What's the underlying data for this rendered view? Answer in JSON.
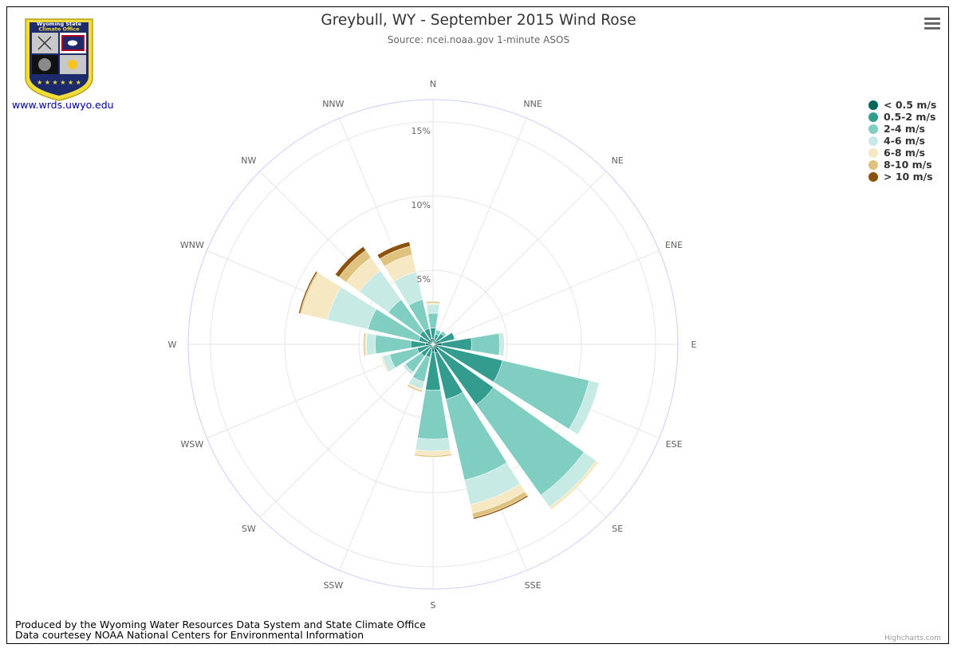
{
  "header": {
    "title": "Greybull, WY - September 2015 Wind Rose",
    "subtitle": "Source: ncei.noaa.gov 1-minute ASOS"
  },
  "logo": {
    "line1": "Wyoming State",
    "line2": "Climate Office",
    "link": "www.wrds.uwyo.edu"
  },
  "footer": {
    "line1": "Produced by the Wyoming Water Resources Data System and State Climate Office",
    "line2": "Data courtesey NOAA National Centers for Environmental Information",
    "credits": "Highcharts.com"
  },
  "colors": {
    "ring": "#ccccff",
    "grid": "#e6e6e6"
  },
  "chart_data": {
    "type": "wind-rose (stacked polar column)",
    "directions": [
      "N",
      "NNE",
      "NE",
      "ENE",
      "E",
      "ESE",
      "SE",
      "SSE",
      "S",
      "SSW",
      "SW",
      "WSW",
      "W",
      "WNW",
      "NW",
      "NNW"
    ],
    "radial_ticks": [
      "5%",
      "10%",
      "15%"
    ],
    "radial_max": 16.5,
    "series": [
      {
        "name": "< 0.5 m/s",
        "color": "#00675a",
        "values": [
          0.4,
          0.3,
          0.3,
          0.5,
          0.6,
          0.4,
          0.5,
          0.6,
          0.5,
          0.3,
          0.3,
          0.3,
          0.5,
          0.4,
          0.4,
          0.4
        ]
      },
      {
        "name": "0.5-2 m/s",
        "color": "#349b8f",
        "values": [
          0.7,
          0.4,
          0.6,
          1.0,
          2.0,
          4.4,
          4.5,
          3.2,
          2.6,
          0.6,
          0.7,
          0.8,
          1.0,
          0.6,
          0.7,
          0.7
        ]
      },
      {
        "name": "2-4 m/s",
        "color": "#80cdc1",
        "values": [
          1.0,
          0.3,
          0.2,
          0.0,
          1.9,
          6.0,
          7.5,
          5.6,
          3.3,
          1.7,
          1.3,
          1.9,
          2.4,
          3.5,
          2.6,
          2.0
        ]
      },
      {
        "name": "4-6 m/s",
        "color": "#c7eae5",
        "values": [
          0.6,
          0.0,
          0.0,
          0.0,
          0.3,
          0.7,
          1.0,
          1.7,
          0.8,
          0.5,
          0.2,
          0.5,
          0.6,
          2.8,
          2.4,
          1.9
        ]
      },
      {
        "name": "6-8 m/s",
        "color": "#f6e8c3",
        "values": [
          0.1,
          0.0,
          0.0,
          0.0,
          0.0,
          0.0,
          0.2,
          0.6,
          0.3,
          0.1,
          0.0,
          0.1,
          0.1,
          1.8,
          1.1,
          1.2
        ]
      },
      {
        "name": "8-10 m/s",
        "color": "#dfc27d",
        "values": [
          0.1,
          0.0,
          0.0,
          0.0,
          0.0,
          0.0,
          0.0,
          0.3,
          0.1,
          0.1,
          0.0,
          0.0,
          0.1,
          0.1,
          0.6,
          0.6
        ]
      },
      {
        "name": "> 10 m/s",
        "color": "#8c510a",
        "values": [
          0.0,
          0.0,
          0.0,
          0.0,
          0.0,
          0.0,
          0.0,
          0.1,
          0.0,
          0.0,
          0.0,
          0.0,
          0.0,
          0.1,
          0.3,
          0.3
        ]
      }
    ]
  }
}
